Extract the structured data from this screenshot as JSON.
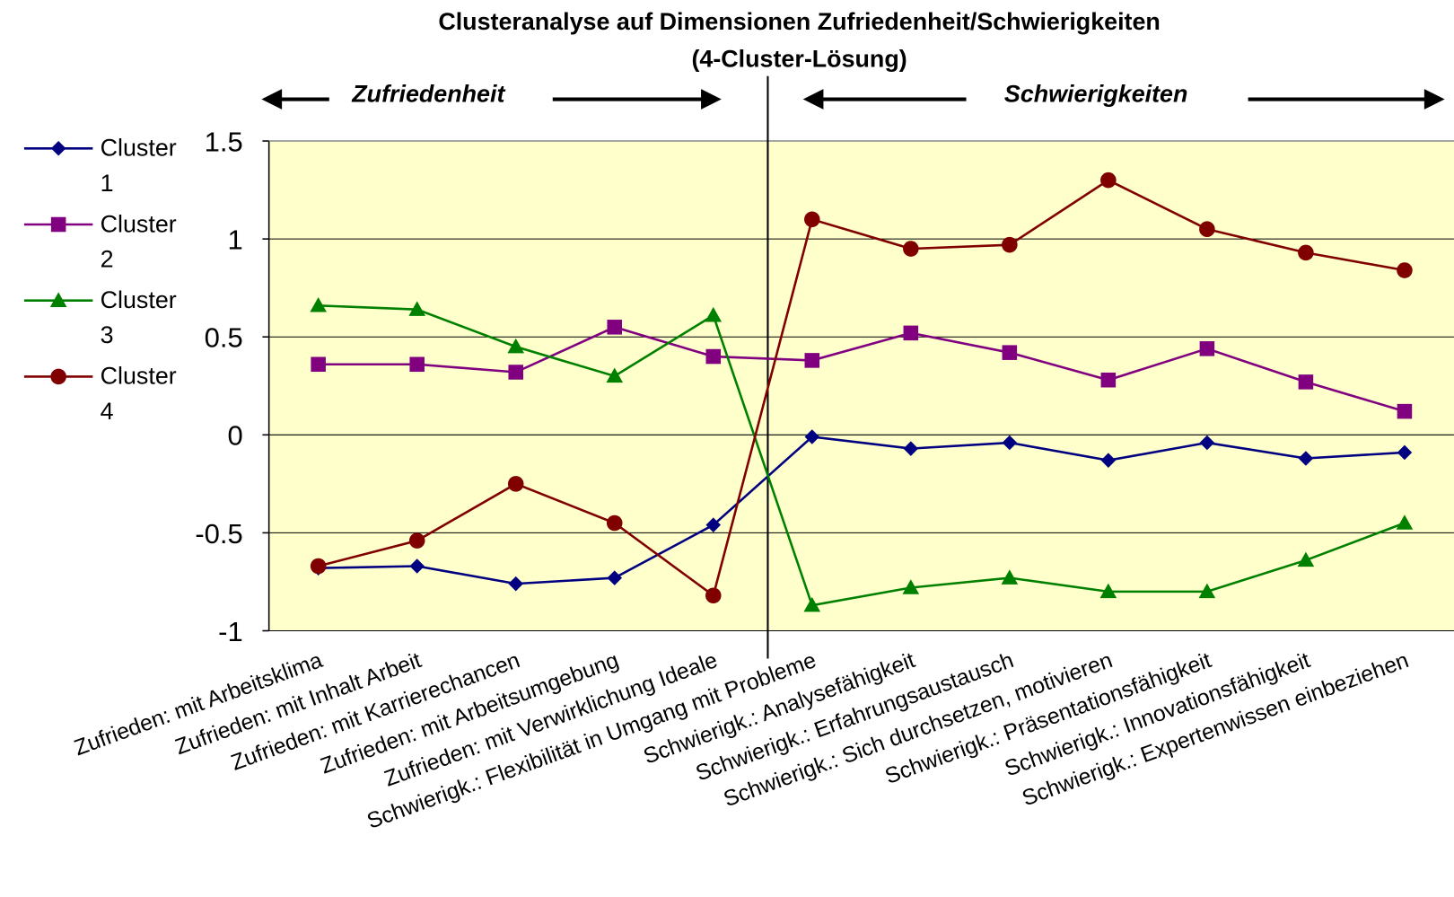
{
  "chart_data": {
    "type": "line",
    "title": "Clusteranalyse auf Dimensionen Zufriedenheit/Schwierigkeiten",
    "subtitle": "(4-Cluster-Lösung)",
    "annotations": [
      "Zufriedenheit",
      "Schwierigkeiten"
    ],
    "categories": [
      "Zufrieden: mit Arbeitsklima",
      "Zufrieden:  mit Inhalt Arbeit",
      "Zufrieden:  mit Karrierechancen",
      "Zufrieden:  mit Arbeitsumgebung",
      "Zufrieden:  mit Verwirklichung Ideale",
      "Schwierigk.: Flexibilität in Umgang mit Probleme",
      "Schwierigk.: Analysefähigkeit",
      "Schwierigk.: Erfahrungsaustausch",
      "Schwierigk.: Sich durchsetzen, motivieren",
      "Schwierigk.: Präsentationsfähigkeit",
      "Schwierigk.: Innovationsfähigkeit",
      "Schwierigk.: Expertenwissen einbeziehen"
    ],
    "series": [
      {
        "name": "Cluster 1",
        "color": "#000080",
        "marker": "diamond",
        "values": [
          -0.68,
          -0.67,
          -0.76,
          -0.73,
          -0.46,
          -0.01,
          -0.07,
          -0.04,
          -0.13,
          -0.04,
          -0.12,
          -0.09
        ]
      },
      {
        "name": "Cluster 2",
        "color": "#800080",
        "marker": "square",
        "values": [
          0.36,
          0.36,
          0.32,
          0.55,
          0.4,
          0.38,
          0.52,
          0.42,
          0.28,
          0.44,
          0.27,
          0.12
        ]
      },
      {
        "name": "Cluster 3",
        "color": "#008000",
        "marker": "triangle",
        "values": [
          0.66,
          0.64,
          0.45,
          0.3,
          0.61,
          -0.87,
          -0.78,
          -0.73,
          -0.8,
          -0.8,
          -0.64,
          -0.45
        ]
      },
      {
        "name": "Cluster 4",
        "color": "#800000",
        "marker": "circle",
        "values": [
          -0.67,
          -0.54,
          -0.25,
          -0.45,
          -0.82,
          1.1,
          0.95,
          0.97,
          1.3,
          1.05,
          0.93,
          0.84
        ]
      }
    ],
    "ylim": [
      -1,
      1.5
    ],
    "yticks": [
      -1,
      -0.5,
      0,
      0.5,
      1,
      1.5
    ],
    "grid": true,
    "plot_background": "#ffffcc",
    "legend": "left"
  }
}
